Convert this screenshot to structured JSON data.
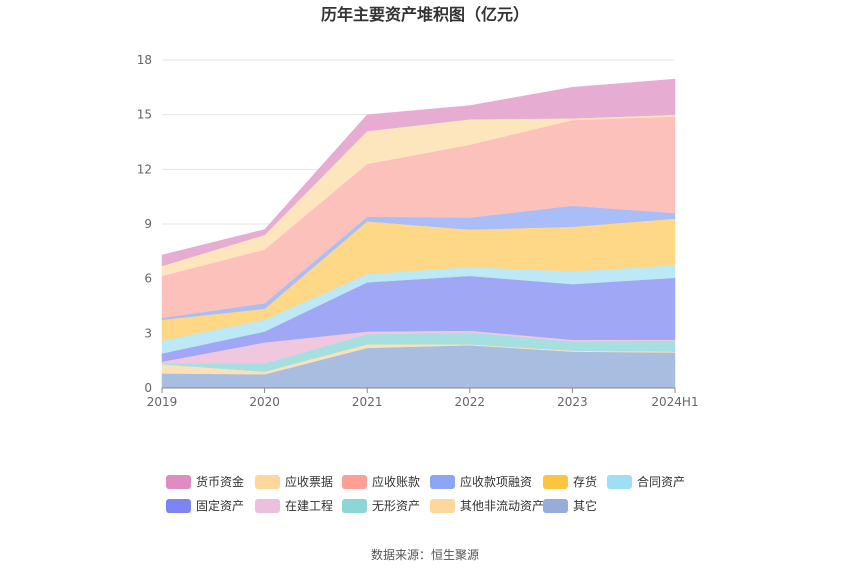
{
  "chart_data": {
    "type": "area",
    "stacked": true,
    "title": "历年主要资产堆积图（亿元）",
    "categories": [
      "2019",
      "2020",
      "2021",
      "2022",
      "2023",
      "2024H1"
    ],
    "ylim": [
      0,
      18
    ],
    "yticks": [
      "0",
      "3",
      "6",
      "9",
      "12",
      "15",
      "18"
    ],
    "grid": true,
    "legend_position": "bottom",
    "series": [
      {
        "name": "其它",
        "color": "#a9bde0",
        "values": [
          0.8,
          0.75,
          2.2,
          2.35,
          2.0,
          1.95
        ]
      },
      {
        "name": "其他非流动资产",
        "color": "#fbe1b8",
        "values": [
          0.5,
          0.15,
          0.2,
          0.05,
          0.05,
          0.05
        ]
      },
      {
        "name": "无形资产",
        "color": "#a6dfdf",
        "values": [
          0.05,
          0.45,
          0.55,
          0.65,
          0.5,
          0.6
        ]
      },
      {
        "name": "在建工程",
        "color": "#efc8df",
        "values": [
          0.1,
          1.15,
          0.15,
          0.1,
          0.1,
          0.05
        ]
      },
      {
        "name": "固定资产",
        "color": "#a0a7f4",
        "values": [
          0.45,
          0.6,
          2.7,
          3.0,
          3.05,
          3.4
        ]
      },
      {
        "name": "合同资产",
        "color": "#bde8f5",
        "values": [
          0.7,
          0.65,
          0.45,
          0.5,
          0.7,
          0.7
        ]
      },
      {
        "name": "存货",
        "color": "#fed886",
        "values": [
          1.15,
          0.6,
          2.9,
          2.05,
          2.45,
          2.55
        ]
      },
      {
        "name": "应收款项融资",
        "color": "#a9bdf8",
        "values": [
          0.1,
          0.3,
          0.25,
          0.65,
          1.15,
          0.3
        ]
      },
      {
        "name": "应收账款",
        "color": "#fdc1bb",
        "values": [
          2.3,
          2.95,
          2.9,
          4.0,
          4.7,
          5.3
        ]
      },
      {
        "name": "应收票据",
        "color": "#fde5bd",
        "values": [
          0.55,
          0.8,
          1.8,
          1.4,
          0.1,
          0.1
        ]
      },
      {
        "name": "货币资金",
        "color": "#e6acd2",
        "values": [
          0.6,
          0.3,
          0.9,
          0.75,
          1.7,
          1.95
        ]
      }
    ],
    "legend_order": [
      "货币资金",
      "应收票据",
      "应收账款",
      "应收款项融资",
      "存货",
      "合同资产",
      "固定资产",
      "在建工程",
      "无形资产",
      "其他非流动资产",
      "其它"
    ],
    "legend_colors": {
      "货币资金": "#df8cc3",
      "应收票据": "#fdd79c",
      "应收账款": "#fc9f95",
      "应收款项融资": "#8ba6f5",
      "存货": "#fdc43f",
      "合同资产": "#9edff5",
      "固定资产": "#7e84f2",
      "在建工程": "#ecbfdc",
      "无形资产": "#8cd6d6",
      "其他非流动资产": "#fdd79c",
      "其它": "#95add8"
    }
  },
  "footer": {
    "source": "数据来源：恒生聚源"
  }
}
